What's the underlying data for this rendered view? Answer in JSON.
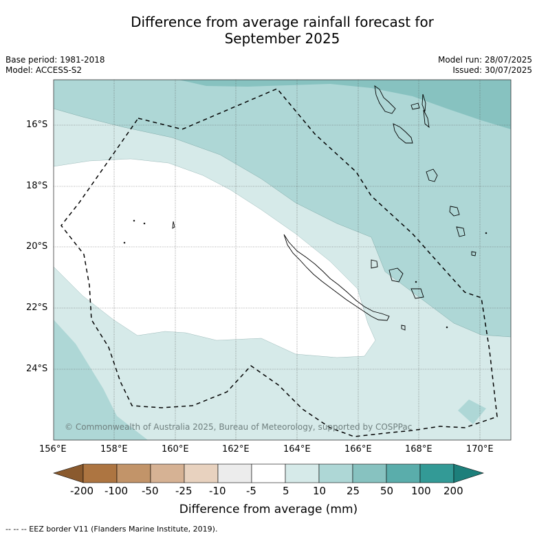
{
  "header": {
    "title_line1": "Difference from average rainfall forecast for",
    "title_line2": "September 2025",
    "base_period": "Base period: 1981-2018",
    "model": "Model: ACCESS-S2",
    "model_run": "Model run: 28/07/2025",
    "issued": "Issued: 30/07/2025"
  },
  "map": {
    "copyright": "© Commonwealth of Australia 2025, Bureau of Meteorology, supported by COSPPac",
    "lon_ticks": [
      "156°E",
      "158°E",
      "160°E",
      "162°E",
      "164°E",
      "166°E",
      "168°E",
      "170°E"
    ],
    "lat_ticks": [
      "16°S",
      "18°S",
      "20°S",
      "22°S",
      "24°S"
    ],
    "lon_range": [
      156,
      171
    ],
    "lat_range": [
      -14.5,
      -26.3
    ]
  },
  "colorbar": {
    "title": "Difference from average (mm)",
    "ticks": [
      "-200",
      "-100",
      "-50",
      "-25",
      "-10",
      "-5",
      "5",
      "10",
      "25",
      "50",
      "100",
      "200"
    ],
    "colors": [
      "#8a5a2e",
      "#ad7541",
      "#c29469",
      "#d6b294",
      "#e8d2bf",
      "#ececec",
      "#ffffff",
      "#d6eae9",
      "#aed7d6",
      "#87c2c0",
      "#5aadab",
      "#339a96",
      "#1d7f7b"
    ]
  },
  "footnote": "-- -- -- EEZ border V11 (Flanders Marine Institute, 2019)."
}
